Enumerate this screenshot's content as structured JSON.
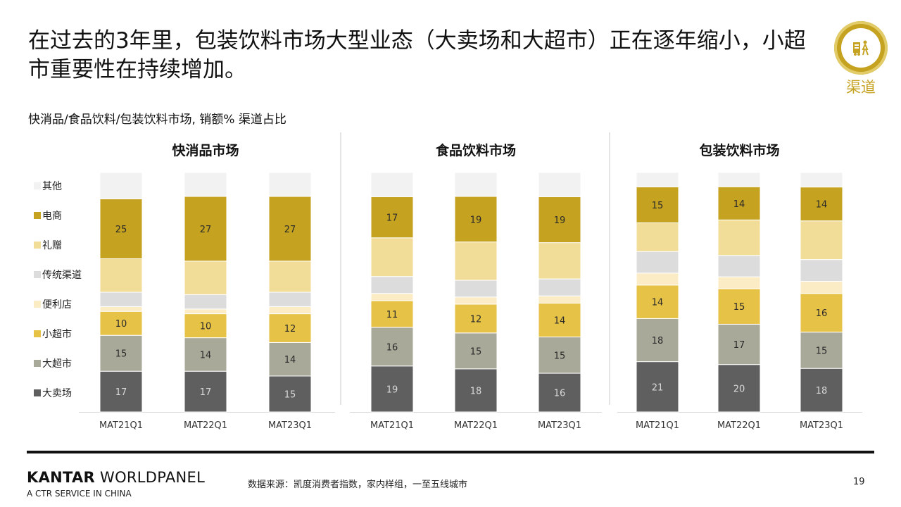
{
  "title": "在过去的3年里，包装饮料市场大型业态（大卖场和大超市）正在逐年缩小，小超市重要性在持续增加。",
  "subtitle": "快消品/食品饮料/包装饮料市场, 销额% 渠道占比",
  "badge": {
    "label": "渠道",
    "icon": "shopping-cart-person-icon",
    "color": "#c5a220"
  },
  "footer": {
    "brand_bold": "KANTAR",
    "brand_rest": " WORLDPANEL",
    "brand_sub": "A CTR SERVICE IN CHINA",
    "source": "数据来源：凯度消费者指数，家内样组，一至五线城市",
    "page": "19"
  },
  "chart_data": {
    "type": "bar",
    "stacked": true,
    "unit": "%",
    "legend_order": [
      "其他",
      "电商",
      "礼赠",
      "传统渠道",
      "便利店",
      "小超市",
      "大超市",
      "大卖场"
    ],
    "colors": {
      "大卖场": "#5f5f5f",
      "大超市": "#a9a99a",
      "小超市": "#e6c246",
      "便利店": "#fbecc6",
      "传统渠道": "#dcdcdc",
      "礼赠": "#f1dc98",
      "电商": "#c5a220",
      "其他": "#f2f2f2"
    },
    "charts": [
      {
        "title": "快消品市场",
        "categories": [
          "MAT21Q1",
          "MAT22Q1",
          "MAT23Q1"
        ],
        "series": [
          {
            "name": "大卖场",
            "values": [
              17,
              17,
              15
            ],
            "labeled": true
          },
          {
            "name": "大超市",
            "values": [
              15,
              14,
              14
            ],
            "labeled": true
          },
          {
            "name": "小超市",
            "values": [
              10,
              10,
              12
            ],
            "labeled": true
          },
          {
            "name": "便利店",
            "values": [
              2,
              2,
              3
            ],
            "labeled": false
          },
          {
            "name": "传统渠道",
            "values": [
              6,
              6,
              6
            ],
            "labeled": false
          },
          {
            "name": "礼赠",
            "values": [
              14,
              14,
              13
            ],
            "labeled": false
          },
          {
            "name": "电商",
            "values": [
              25,
              27,
              27
            ],
            "labeled": true
          },
          {
            "name": "其他",
            "values": [
              11,
              10,
              10
            ],
            "labeled": false
          }
        ]
      },
      {
        "title": "食品饮料市场",
        "categories": [
          "MAT21Q1",
          "MAT22Q1",
          "MAT23Q1"
        ],
        "series": [
          {
            "name": "大卖场",
            "values": [
              19,
              18,
              16
            ],
            "labeled": true
          },
          {
            "name": "大超市",
            "values": [
              16,
              15,
              15
            ],
            "labeled": true
          },
          {
            "name": "小超市",
            "values": [
              11,
              12,
              14
            ],
            "labeled": true
          },
          {
            "name": "便利店",
            "values": [
              3,
              3,
              3
            ],
            "labeled": false
          },
          {
            "name": "传统渠道",
            "values": [
              7,
              7,
              7
            ],
            "labeled": false
          },
          {
            "name": "礼赠",
            "values": [
              16,
              16,
              15
            ],
            "labeled": false
          },
          {
            "name": "电商",
            "values": [
              17,
              19,
              19
            ],
            "labeled": true
          },
          {
            "name": "其他",
            "values": [
              10,
              10,
              10
            ],
            "labeled": false
          }
        ]
      },
      {
        "title": "包装饮料市场",
        "categories": [
          "MAT21Q1",
          "MAT22Q1",
          "MAT23Q1"
        ],
        "series": [
          {
            "name": "大卖场",
            "values": [
              21,
              20,
              18
            ],
            "labeled": true
          },
          {
            "name": "大超市",
            "values": [
              18,
              17,
              15
            ],
            "labeled": true
          },
          {
            "name": "小超市",
            "values": [
              14,
              15,
              16
            ],
            "labeled": true
          },
          {
            "name": "便利店",
            "values": [
              5,
              5,
              5
            ],
            "labeled": false
          },
          {
            "name": "传统渠道",
            "values": [
              9,
              9,
              9
            ],
            "labeled": false
          },
          {
            "name": "礼赠",
            "values": [
              12,
              15,
              16
            ],
            "labeled": false
          },
          {
            "name": "电商",
            "values": [
              15,
              14,
              14
            ],
            "labeled": true
          },
          {
            "name": "其他",
            "values": [
              6,
              6,
              6
            ],
            "labeled": false
          }
        ]
      }
    ]
  }
}
